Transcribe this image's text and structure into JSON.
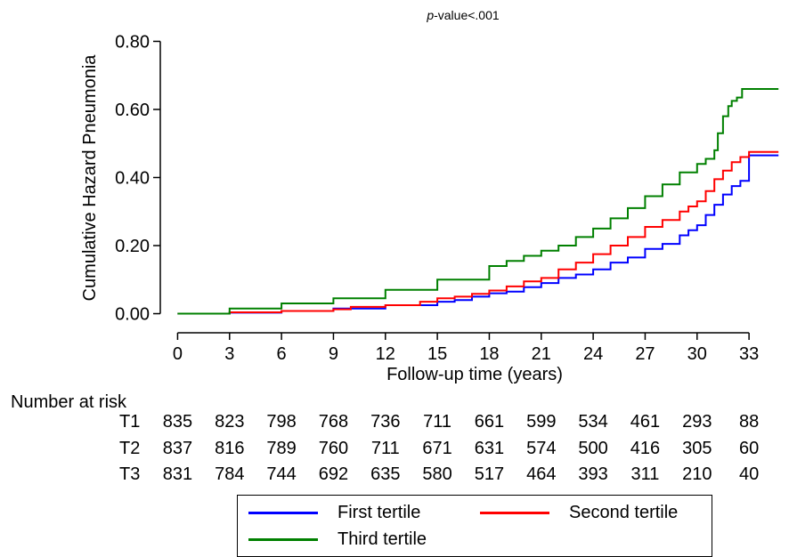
{
  "chart_data": {
    "type": "line",
    "title": "p-value<.001",
    "title_italic_part": "p",
    "title_rest": "-value<.001",
    "xlabel": "Follow-up time (years)",
    "ylabel": "Cumulative Hazard Pneumonia",
    "xlim": [
      -1,
      35
    ],
    "ylim": [
      -0.03,
      0.83
    ],
    "xticks": [
      0,
      3,
      6,
      9,
      12,
      15,
      18,
      21,
      24,
      27,
      30,
      33
    ],
    "yticks": [
      0.0,
      0.2,
      0.4,
      0.6,
      0.8
    ],
    "ytick_labels": [
      "0.00",
      "0.20",
      "0.40",
      "0.60",
      "0.80"
    ],
    "grid": false,
    "legend_position": "bottom",
    "series": [
      {
        "name": "First tertile",
        "color": "#0000ff",
        "x": [
          0,
          3,
          6,
          9,
          12,
          15,
          16,
          17,
          18,
          19,
          20,
          21,
          22,
          23,
          24,
          25,
          26,
          27,
          28,
          29,
          29.5,
          30,
          30.5,
          31,
          31.5,
          32,
          32.5,
          33,
          34.7
        ],
        "y": [
          0,
          0.003,
          0.008,
          0.015,
          0.025,
          0.035,
          0.04,
          0.05,
          0.06,
          0.065,
          0.078,
          0.09,
          0.105,
          0.115,
          0.13,
          0.15,
          0.165,
          0.19,
          0.205,
          0.23,
          0.245,
          0.26,
          0.29,
          0.32,
          0.35,
          0.375,
          0.39,
          0.465,
          0.465
        ]
      },
      {
        "name": "Second tertile",
        "color": "#ff0000",
        "x": [
          0,
          3,
          6,
          9,
          10,
          12,
          14,
          15,
          16,
          17,
          18,
          19,
          20,
          21,
          22,
          23,
          24,
          25,
          26,
          27,
          28,
          29,
          29.5,
          30,
          30.5,
          31,
          31.5,
          32,
          32.5,
          33,
          34.7
        ],
        "y": [
          0,
          0.004,
          0.008,
          0.013,
          0.02,
          0.025,
          0.035,
          0.045,
          0.05,
          0.058,
          0.068,
          0.08,
          0.095,
          0.105,
          0.13,
          0.15,
          0.175,
          0.2,
          0.225,
          0.255,
          0.275,
          0.3,
          0.315,
          0.33,
          0.36,
          0.395,
          0.42,
          0.445,
          0.46,
          0.475,
          0.475
        ]
      },
      {
        "name": "Third tertile",
        "color": "#008000",
        "x": [
          0,
          3,
          6,
          9,
          12,
          15,
          18,
          19,
          20,
          21,
          22,
          23,
          24,
          25,
          26,
          27,
          28,
          29,
          30,
          30.5,
          31,
          31.2,
          31.5,
          31.8,
          32,
          32.3,
          32.6,
          34.7
        ],
        "y": [
          0,
          0.015,
          0.03,
          0.045,
          0.07,
          0.1,
          0.14,
          0.155,
          0.17,
          0.185,
          0.2,
          0.225,
          0.25,
          0.28,
          0.31,
          0.345,
          0.38,
          0.415,
          0.44,
          0.455,
          0.48,
          0.53,
          0.58,
          0.61,
          0.625,
          0.635,
          0.66,
          0.66
        ]
      }
    ]
  },
  "risk_table": {
    "title": "Number at risk",
    "rows": [
      {
        "group": "T1",
        "values": [
          "835",
          "823",
          "798",
          "768",
          "736",
          "711",
          "661",
          "599",
          "534",
          "461",
          "293",
          "88"
        ]
      },
      {
        "group": "T2",
        "values": [
          "837",
          "816",
          "789",
          "760",
          "711",
          "671",
          "631",
          "574",
          "500",
          "416",
          "305",
          "60"
        ]
      },
      {
        "group": "T3",
        "values": [
          "831",
          "784",
          "744",
          "692",
          "635",
          "580",
          "517",
          "464",
          "393",
          "311",
          "210",
          "40"
        ]
      }
    ]
  }
}
